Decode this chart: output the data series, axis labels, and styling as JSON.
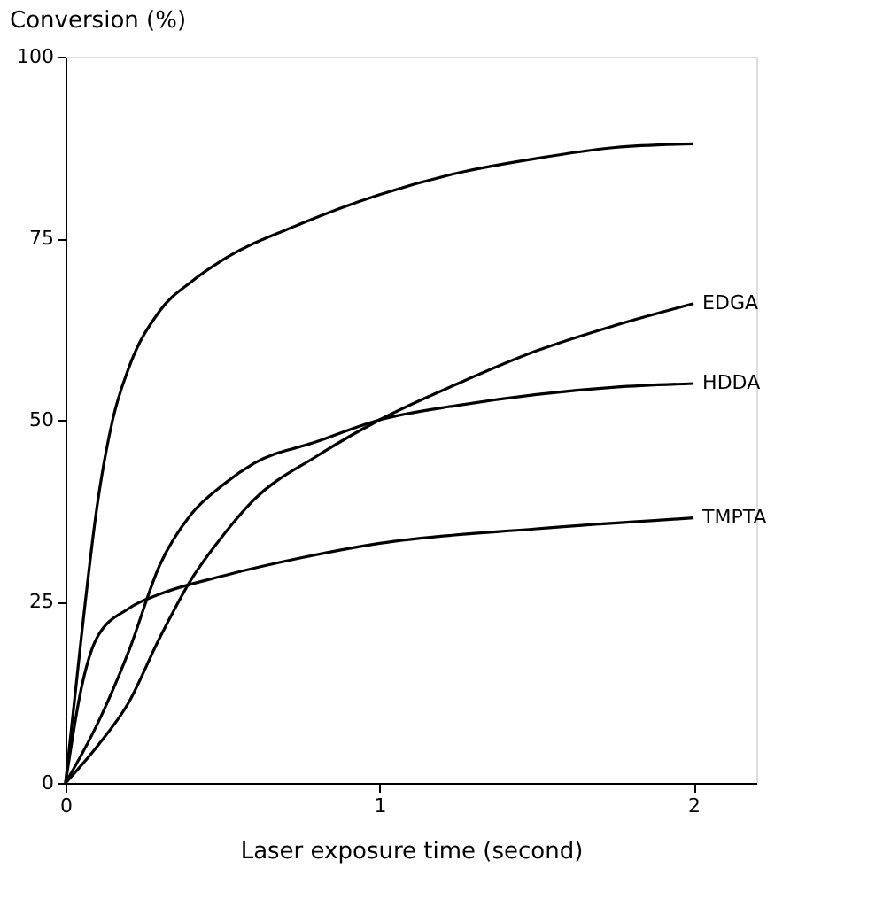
{
  "chart_data": {
    "type": "line",
    "xlabel": "Laser exposure time (second)",
    "ylabel": "Conversion (%)",
    "xlim": [
      0,
      2.2
    ],
    "xticks": [
      0,
      1,
      2
    ],
    "ylim": [
      0,
      100
    ],
    "yticks": [
      0,
      25,
      50,
      75,
      100
    ],
    "grid": false,
    "marker": "none",
    "line_style": "solid",
    "series": [
      {
        "color": "#000000",
        "x": [
          0,
          0.05,
          0.1,
          0.15,
          0.2,
          0.3,
          0.4,
          0.5,
          0.75,
          1.0,
          1.25,
          1.5,
          1.75,
          2.0
        ],
        "values": [
          0,
          20,
          38,
          50,
          57,
          65,
          69,
          72,
          77,
          81,
          84,
          86,
          87.5,
          88
        ]
      },
      {
        "name": "EDGA",
        "color": "#000000",
        "x": [
          0,
          0.1,
          0.2,
          0.3,
          0.4,
          0.5,
          0.6,
          0.8,
          1.0,
          1.25,
          1.5,
          1.75,
          2.0
        ],
        "values": [
          0,
          5,
          11,
          20,
          28,
          34,
          39,
          45,
          50,
          55,
          59.5,
          63,
          66
        ]
      },
      {
        "name": "HDDA",
        "color": "#000000",
        "x": [
          0,
          0.1,
          0.2,
          0.3,
          0.4,
          0.5,
          0.6,
          0.8,
          1.0,
          1.25,
          1.5,
          1.75,
          2.0
        ],
        "values": [
          0,
          8,
          18,
          30,
          37,
          41,
          44,
          47,
          50,
          52,
          53.5,
          54.5,
          55
        ]
      },
      {
        "name": "TMPTA",
        "color": "#000000",
        "x": [
          0,
          0.05,
          0.1,
          0.2,
          0.3,
          0.5,
          0.75,
          1.0,
          1.5,
          2.0
        ],
        "values": [
          0,
          13,
          20,
          24,
          26,
          28.5,
          31,
          33,
          35,
          36.5
        ]
      }
    ]
  }
}
